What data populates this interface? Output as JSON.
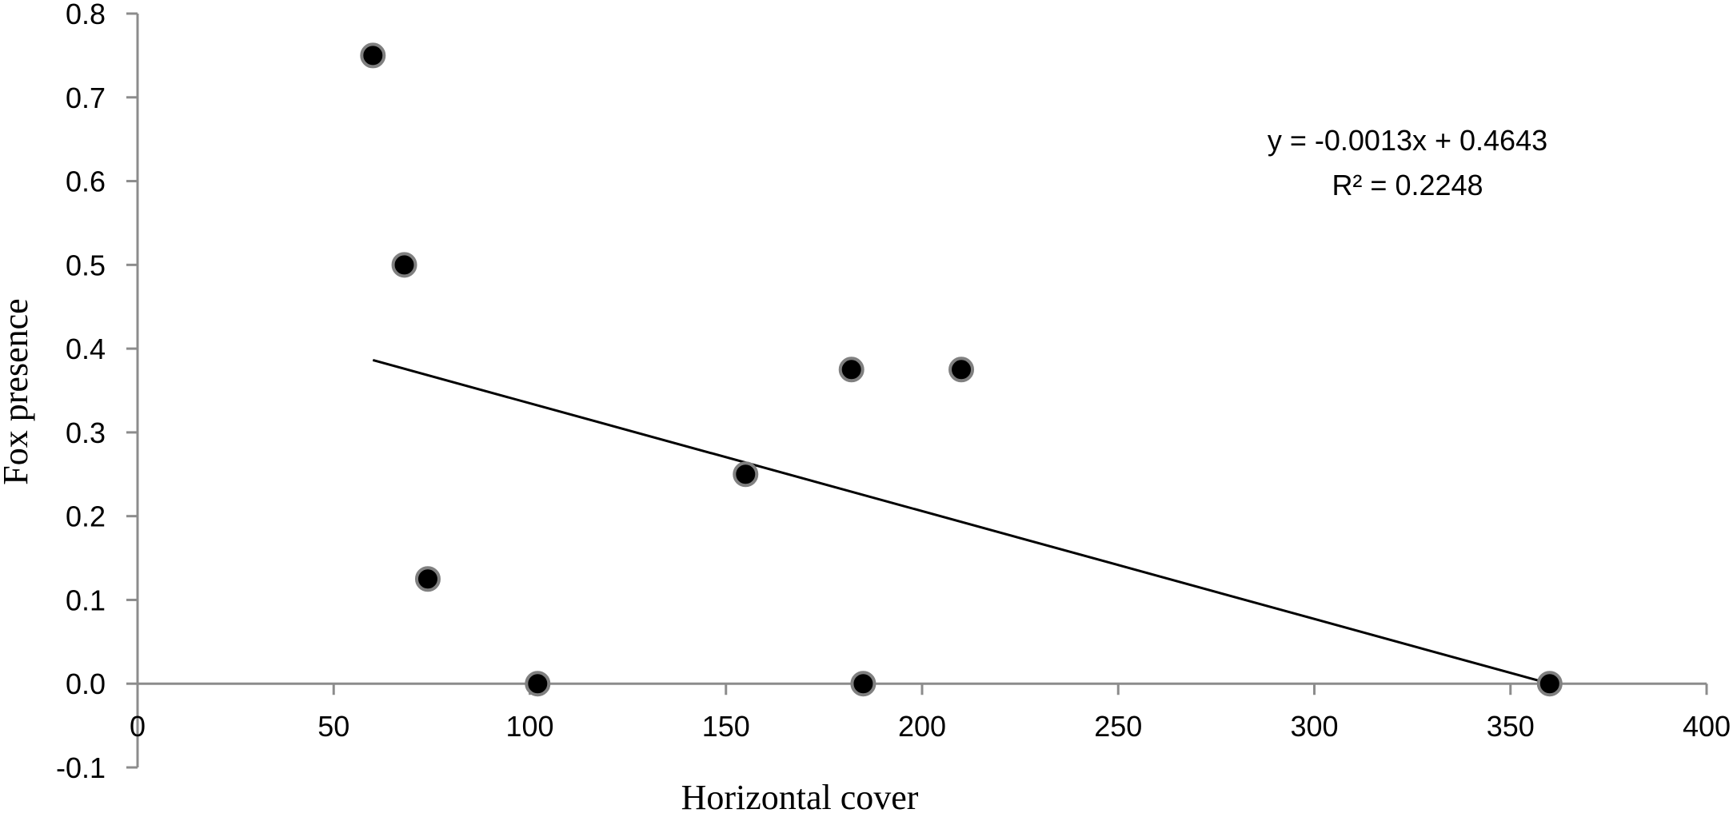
{
  "chart_data": {
    "type": "scatter",
    "title": "",
    "xlabel": "Horizontal cover",
    "ylabel": "Fox presence",
    "xlim": [
      0,
      400
    ],
    "ylim": [
      -0.1,
      0.8
    ],
    "x_ticks": [
      0,
      50,
      100,
      150,
      200,
      250,
      300,
      350,
      400
    ],
    "y_ticks": [
      -0.1,
      0.0,
      0.1,
      0.2,
      0.3,
      0.4,
      0.5,
      0.6,
      0.7,
      0.8
    ],
    "x_tick_labels": [
      "0",
      "50",
      "100",
      "150",
      "200",
      "250",
      "300",
      "350",
      "400"
    ],
    "y_tick_labels": [
      "-0.1",
      "0.0",
      "0.1",
      "0.2",
      "0.3",
      "0.4",
      "0.5",
      "0.6",
      "0.7",
      "0.8"
    ],
    "grid": false,
    "legend": "none",
    "points": [
      {
        "x": 60,
        "y": 0.75
      },
      {
        "x": 68,
        "y": 0.5
      },
      {
        "x": 74,
        "y": 0.125
      },
      {
        "x": 102,
        "y": 0.0
      },
      {
        "x": 155,
        "y": 0.25
      },
      {
        "x": 182,
        "y": 0.375
      },
      {
        "x": 185,
        "y": 0.0
      },
      {
        "x": 210,
        "y": 0.375
      },
      {
        "x": 360,
        "y": 0.0
      }
    ],
    "trendline": {
      "x_range": [
        60,
        360
      ],
      "equation_label": "y = -0.0013x + 0.4643",
      "r2_label": "R² = 0.2248"
    },
    "colors": {
      "marker_fill": "#000000",
      "marker_stroke": "#808080",
      "axis": "#8c8c8c",
      "trendline": "#000000"
    }
  }
}
